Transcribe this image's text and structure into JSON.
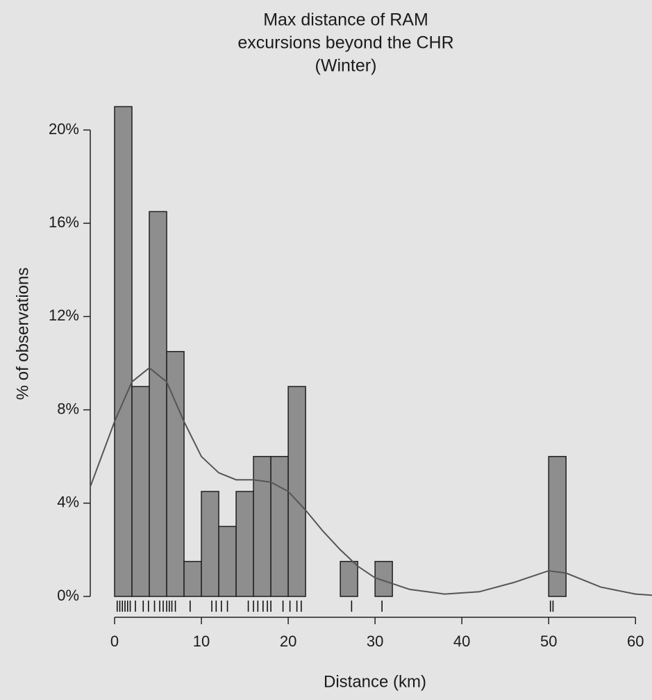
{
  "chart_data": {
    "type": "histogram",
    "title": [
      "Max distance of RAM",
      "excursions beyond the CHR",
      "(Winter)"
    ],
    "xlabel": "Distance (km)",
    "ylabel": "% of observations",
    "bins": [
      0,
      2,
      4,
      6,
      8,
      10,
      12,
      14,
      16,
      18,
      20,
      22,
      24,
      26,
      28,
      30,
      32,
      34,
      36,
      38,
      40,
      42,
      44,
      46,
      48,
      50,
      52
    ],
    "values": [
      21,
      9,
      16.5,
      10.5,
      1.5,
      4.5,
      3,
      4.5,
      6,
      6,
      9,
      0,
      0,
      1.5,
      0,
      1.5,
      0,
      0,
      0,
      0,
      0,
      0,
      0,
      0,
      0,
      6
    ],
    "color": "#8e8e8e",
    "density": {
      "x": [
        -2.8,
        0,
        2,
        4,
        6,
        8,
        10,
        12,
        14,
        16,
        18,
        20,
        22,
        24,
        26,
        28,
        30,
        34,
        38,
        42,
        46,
        50,
        52,
        56,
        60,
        62
      ],
      "values": [
        4.7,
        7.5,
        9.2,
        9.8,
        9.2,
        7.5,
        6,
        5.3,
        5,
        5,
        4.9,
        4.5,
        3.7,
        2.8,
        2,
        1.3,
        0.8,
        0.3,
        0.1,
        0.2,
        0.6,
        1.1,
        1.0,
        0.4,
        0.1,
        0.05
      ],
      "color": "#555555"
    },
    "rug": [
      0.3,
      0.6,
      0.9,
      1.2,
      1.5,
      1.8,
      2.4,
      3.3,
      3.9,
      4.6,
      5.2,
      5.6,
      6.0,
      6.3,
      6.6,
      7.0,
      8.7,
      11.2,
      11.7,
      12.3,
      13.0,
      15.4,
      16.0,
      16.5,
      17.1,
      17.6,
      18.0,
      19.4,
      20.2,
      21.0,
      21.5,
      27.3,
      30.8,
      50.2,
      50.5
    ],
    "xlim": [
      -2.8,
      61.9
    ],
    "ylim": [
      0,
      21.4
    ],
    "xticks": [
      0,
      10,
      20,
      30,
      40,
      50,
      60
    ],
    "yticks": [
      {
        "value": 0,
        "label": "0%"
      },
      {
        "value": 4,
        "label": "4%"
      },
      {
        "value": 8,
        "label": "8%"
      },
      {
        "value": 12,
        "label": "12%"
      },
      {
        "value": 16,
        "label": "16%"
      },
      {
        "value": 20,
        "label": "20%"
      }
    ]
  }
}
